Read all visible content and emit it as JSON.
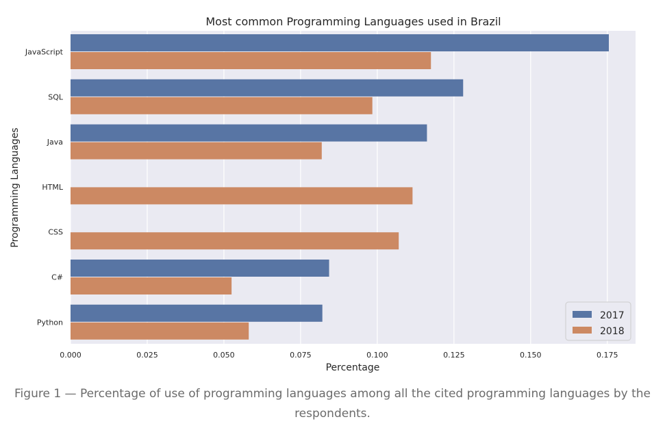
{
  "caption": "Figure 1 — Percentage of use of programming languages among all the cited programming languages by the respondents.",
  "chart_data": {
    "type": "bar",
    "orientation": "horizontal",
    "title": "Most common Programming Languages used in Brazil",
    "xlabel": "Percentage",
    "ylabel": "Programming Languages",
    "categories": [
      "JavaScript",
      "SQL",
      "Java",
      "HTML",
      "CSS",
      "C#",
      "Python"
    ],
    "series": [
      {
        "name": "2017",
        "color": "#5875a4",
        "values": [
          0.1755,
          0.128,
          0.1162,
          null,
          null,
          0.0843,
          0.0821
        ]
      },
      {
        "name": "2018",
        "color": "#cc8963",
        "values": [
          0.1175,
          0.0984,
          0.0819,
          0.1115,
          0.107,
          0.0525,
          0.0581
        ]
      }
    ],
    "xlim": [
      0,
      0.185
    ],
    "xticks": [
      0.0,
      0.025,
      0.05,
      0.075,
      0.1,
      0.125,
      0.15,
      0.175
    ],
    "xtick_labels": [
      "0.000",
      "0.025",
      "0.050",
      "0.075",
      "0.100",
      "0.125",
      "0.150",
      "0.175"
    ],
    "grid": true,
    "background": "#eaeaf2",
    "legend_position": "bottom-right"
  }
}
